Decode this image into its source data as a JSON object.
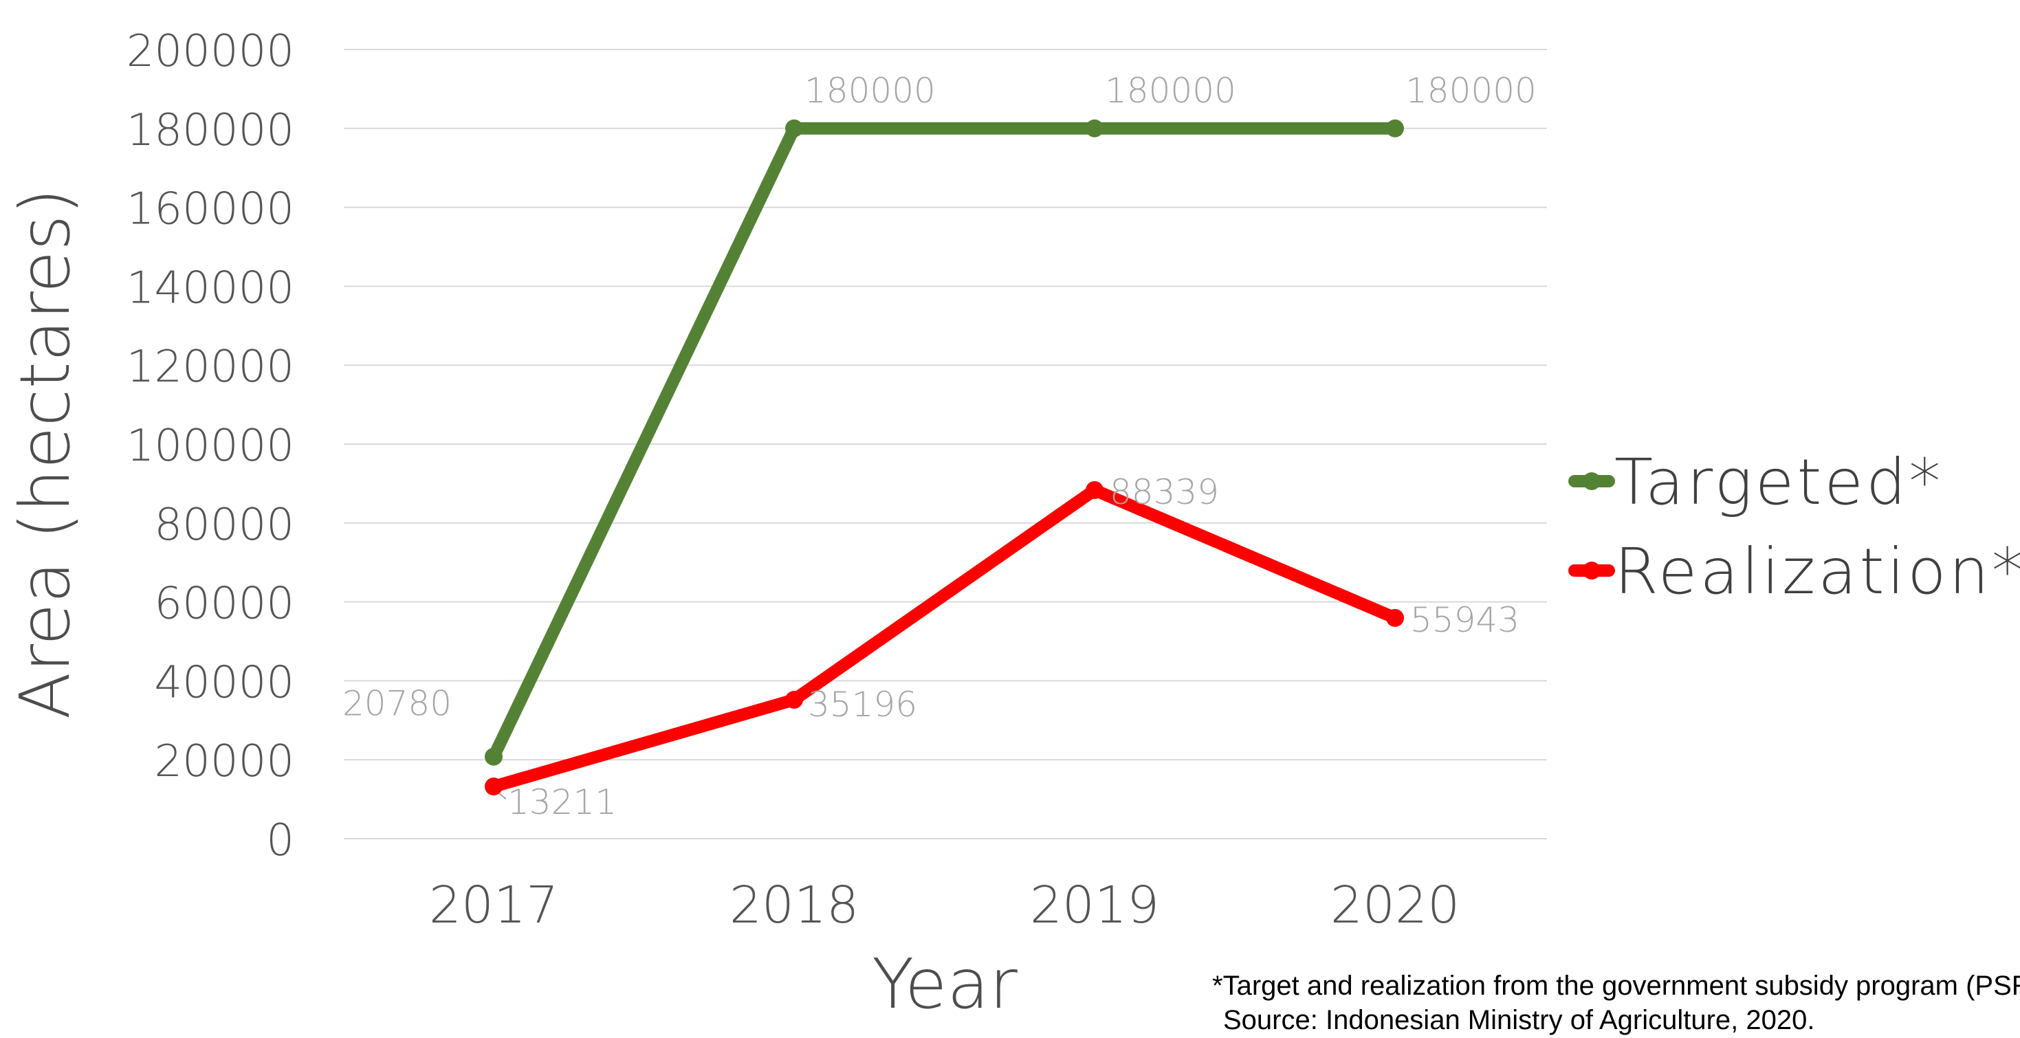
{
  "chart_data": {
    "type": "line",
    "categories": [
      "2017",
      "2018",
      "2019",
      "2020"
    ],
    "series": [
      {
        "name": "Targeted*",
        "values": [
          20780,
          180000,
          180000,
          180000
        ],
        "color": "#548235"
      },
      {
        "name": "Realization*",
        "values": [
          13211,
          35196,
          88339,
          55943
        ],
        "color": "#ff0000"
      }
    ],
    "data_labels": {
      "Targeted*": [
        "20780",
        "180000",
        "180000",
        "180000"
      ],
      "Realization*": [
        "13211",
        "35196",
        "88339",
        "55943"
      ]
    },
    "xlabel": "Year",
    "ylabel": "Area (hectares)",
    "ylim": [
      0,
      200000
    ],
    "yticks": [
      "0",
      "20000",
      "40000",
      "60000",
      "80000",
      "100000",
      "120000",
      "140000",
      "160000",
      "180000",
      "200000"
    ],
    "grid": true,
    "legend_position": "right"
  },
  "footnote": {
    "line1": "*Target and realization from the government subsidy program (PSR)",
    "line2": "Source: Indonesian Ministry of Agriculture, 2020."
  }
}
